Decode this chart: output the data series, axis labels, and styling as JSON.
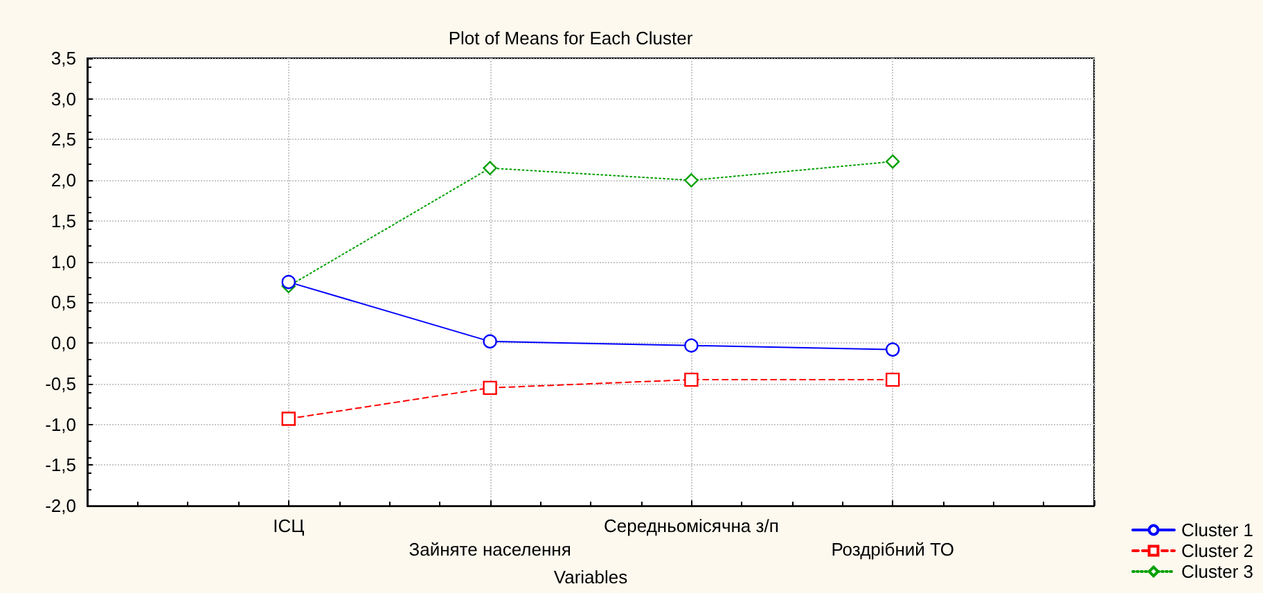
{
  "chart_data": {
    "type": "line",
    "title": "Plot of Means for Each Cluster",
    "xlabel": "Variables",
    "categories": [
      "ІСЦ",
      "Зайняте населення",
      "Середньомісячна з/п",
      "Роздрібний ТО"
    ],
    "series": [
      {
        "name": "Cluster 1",
        "color": "#0000ff",
        "values": [
          0.75,
          0.02,
          -0.03,
          -0.08
        ],
        "marker": "circle",
        "line_style": "solid"
      },
      {
        "name": "Cluster 2",
        "color": "#ff0000",
        "values": [
          -0.93,
          -0.55,
          -0.45,
          -0.45
        ],
        "marker": "square",
        "line_style": "dashed"
      },
      {
        "name": "Cluster 3",
        "color": "#00a000",
        "values": [
          0.7,
          2.15,
          2.0,
          2.23
        ],
        "marker": "diamond",
        "line_style": "dotted"
      }
    ],
    "ylim": [
      -2.0,
      3.5
    ],
    "yticks": [
      {
        "value": -2,
        "label": "-2,0"
      },
      {
        "value": -1.5,
        "label": "-1,5"
      },
      {
        "value": -1,
        "label": "-1,0"
      },
      {
        "value": -0.5,
        "label": "-0,5"
      },
      {
        "value": 0,
        "label": "0,0"
      },
      {
        "value": 0.5,
        "label": "0,5"
      },
      {
        "value": 1,
        "label": "1,0"
      },
      {
        "value": 1.5,
        "label": "1,5"
      },
      {
        "value": 2,
        "label": "2,0"
      },
      {
        "value": 2.5,
        "label": "2,5"
      },
      {
        "value": 3,
        "label": "3,0"
      },
      {
        "value": 3.5,
        "label": "3,5"
      }
    ],
    "grid": true,
    "legend": "bottom right"
  }
}
